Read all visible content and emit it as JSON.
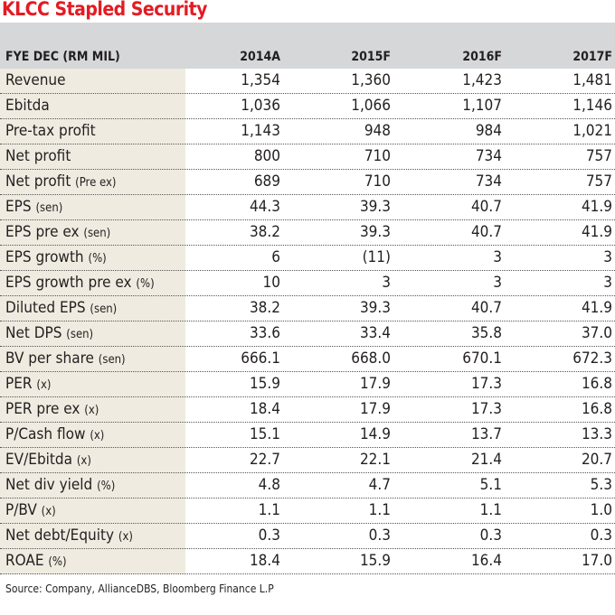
{
  "title": "KLCC Stapled Security",
  "header": [
    "FYE DEC (RM MIL)",
    "2014A",
    "2015F",
    "2016F",
    "2017F"
  ],
  "rows": [
    {
      "label": "Revenue",
      "unit": "",
      "values": [
        "1,354",
        "1,360",
        "1,423",
        "1,481"
      ]
    },
    {
      "label": "Ebitda",
      "unit": "",
      "values": [
        "1,036",
        "1,066",
        "1,107",
        "1,146"
      ]
    },
    {
      "label": "Pre-tax profit",
      "unit": "",
      "values": [
        "1,143",
        "948",
        "984",
        "1,021"
      ]
    },
    {
      "label": "Net profit",
      "unit": "",
      "values": [
        "800",
        "710",
        "734",
        "757"
      ]
    },
    {
      "label": "Net profit",
      "unit": "(Pre ex)",
      "values": [
        "689",
        "710",
        "734",
        "757"
      ]
    },
    {
      "label": "EPS",
      "unit": "(sen)",
      "values": [
        "44.3",
        "39.3",
        "40.7",
        "41.9"
      ]
    },
    {
      "label": "EPS pre ex",
      "unit": "(sen)",
      "values": [
        "38.2",
        "39.3",
        "40.7",
        "41.9"
      ]
    },
    {
      "label": "EPS growth",
      "unit": "(%)",
      "values": [
        "6",
        "(11)",
        "3",
        "3"
      ]
    },
    {
      "label": "EPS growth pre ex",
      "unit": "(%)",
      "values": [
        "10",
        "3",
        "3",
        "3"
      ]
    },
    {
      "label": "Diluted EPS",
      "unit": "(sen)",
      "values": [
        "38.2",
        "39.3",
        "40.7",
        "41.9"
      ]
    },
    {
      "label": "Net DPS",
      "unit": "(sen)",
      "values": [
        "33.6",
        "33.4",
        "35.8",
        "37.0"
      ]
    },
    {
      "label": "BV per share",
      "unit": "(sen)",
      "values": [
        "666.1",
        "668.0",
        "670.1",
        "672.3"
      ]
    },
    {
      "label": "PER",
      "unit": "(x)",
      "values": [
        "15.9",
        "17.9",
        "17.3",
        "16.8"
      ]
    },
    {
      "label": "PER pre ex",
      "unit": "(x)",
      "values": [
        "18.4",
        "17.9",
        "17.3",
        "16.8"
      ]
    },
    {
      "label": "P/Cash flow",
      "unit": "(x)",
      "values": [
        "15.1",
        "14.9",
        "13.7",
        "13.3"
      ]
    },
    {
      "label": "EV/Ebitda",
      "unit": "(x)",
      "values": [
        "22.7",
        "22.1",
        "21.4",
        "20.7"
      ]
    },
    {
      "label": "Net div yield",
      "unit": "(%)",
      "values": [
        "4.8",
        "4.7",
        "5.1",
        "5.3"
      ]
    },
    {
      "label": "P/BV",
      "unit": "(x)",
      "values": [
        "1.1",
        "1.1",
        "1.1",
        "1.0"
      ]
    },
    {
      "label": "Net debt/Equity",
      "unit": "(x)",
      "values": [
        "0.3",
        "0.3",
        "0.3",
        "0.3"
      ]
    },
    {
      "label": "ROAE",
      "unit": "(%)",
      "values": [
        "18.4",
        "15.9",
        "16.4",
        "17.0"
      ]
    }
  ],
  "source": "Source: Company, AllianceDBS, Bloomberg Finance L.P",
  "colors": {
    "title": "#e31b23",
    "header_bg": "#d5d7d9",
    "label_col_bg": "#efebe0"
  }
}
